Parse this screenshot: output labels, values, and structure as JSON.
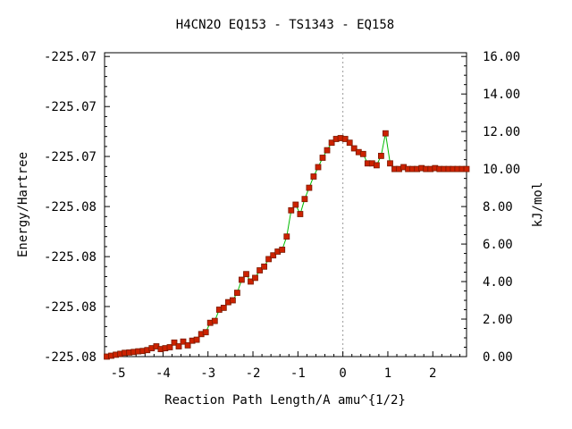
{
  "chart_data": {
    "type": "line",
    "title": "H4CN2O   EQ153 - TS1343 - EQ158",
    "xlabel": "Reaction Path Length/A amu^{1/2}",
    "ylabel": "Energy/Hartree",
    "y2label": "kJ/mol",
    "xlim": [
      -5.3,
      2.75
    ],
    "y2lim": [
      0,
      16.2
    ],
    "x_ticks": [
      "-5",
      "-4",
      "-3",
      "-2",
      "-1",
      "0",
      "1",
      "2"
    ],
    "x_tick_values": [
      -5,
      -4,
      -3,
      -2,
      -1,
      0,
      1,
      2
    ],
    "y_tick_labels": [
      "-225.07",
      "-225.07",
      "-225.07",
      "-225.08",
      "-225.08",
      "-225.08",
      "-225.08"
    ],
    "y_tick_values_kj": [
      16,
      13.33,
      10.67,
      8.0,
      5.33,
      2.67,
      0
    ],
    "y2_ticks": [
      "16.00",
      "14.00",
      "12.00",
      "10.00",
      "8.00",
      "6.00",
      "4.00",
      "2.00",
      "0.00"
    ],
    "y2_tick_values": [
      16,
      14,
      12,
      10,
      8,
      6,
      4,
      2,
      0
    ],
    "ts_x": 0,
    "grid": false,
    "colors": {
      "line": "#00bb00",
      "marker": "#cc2200",
      "marker_edge": "#7a1a00",
      "ts_line": "#999999"
    },
    "series": [
      {
        "x": [
          -5.25,
          -5.15,
          -5.05,
          -4.95,
          -4.85,
          -4.75,
          -4.65,
          -4.55,
          -4.45,
          -4.35,
          -4.25,
          -4.15,
          -4.05,
          -3.95,
          -3.85,
          -3.75,
          -3.65,
          -3.55,
          -3.45,
          -3.35,
          -3.25,
          -3.15,
          -3.05,
          -2.95,
          -2.85,
          -2.75,
          -2.65,
          -2.55,
          -2.45,
          -2.35,
          -2.25,
          -2.15,
          -2.05,
          -1.95,
          -1.85,
          -1.75,
          -1.65,
          -1.55,
          -1.45,
          -1.35,
          -1.25,
          -1.15,
          -1.05,
          -0.95,
          -0.85,
          -0.75,
          -0.65,
          -0.55,
          -0.45,
          -0.35,
          -0.25,
          -0.15,
          -0.05,
          0.05,
          0.15,
          0.25,
          0.35,
          0.45,
          0.55,
          0.65,
          0.75,
          0.85,
          0.95,
          1.05,
          1.15,
          1.25,
          1.35,
          1.45,
          1.55,
          1.65,
          1.75,
          1.85,
          1.95,
          2.05,
          2.15,
          2.25,
          2.35,
          2.45,
          2.55,
          2.65,
          2.75
        ],
        "values": [
          0.0,
          0.05,
          0.1,
          0.15,
          0.2,
          0.22,
          0.25,
          0.28,
          0.3,
          0.35,
          0.45,
          0.55,
          0.4,
          0.45,
          0.5,
          0.75,
          0.55,
          0.8,
          0.6,
          0.85,
          0.9,
          1.2,
          1.3,
          1.8,
          1.9,
          2.5,
          2.6,
          2.9,
          3.0,
          3.4,
          4.1,
          4.4,
          4.0,
          4.2,
          4.6,
          4.8,
          5.2,
          5.4,
          5.6,
          5.7,
          6.4,
          7.8,
          8.1,
          7.6,
          8.4,
          9.0,
          9.6,
          10.1,
          10.6,
          11.0,
          11.4,
          11.6,
          11.65,
          11.6,
          11.4,
          11.1,
          10.9,
          10.8,
          10.3,
          10.3,
          10.2,
          10.7,
          11.9,
          10.3,
          10.0,
          10.0,
          10.1,
          10.0,
          10.0,
          10.0,
          10.05,
          10.0,
          10.0,
          10.05,
          10.0,
          10.0,
          10.0,
          10.0,
          10.0,
          10.0,
          10.0
        ]
      }
    ]
  }
}
